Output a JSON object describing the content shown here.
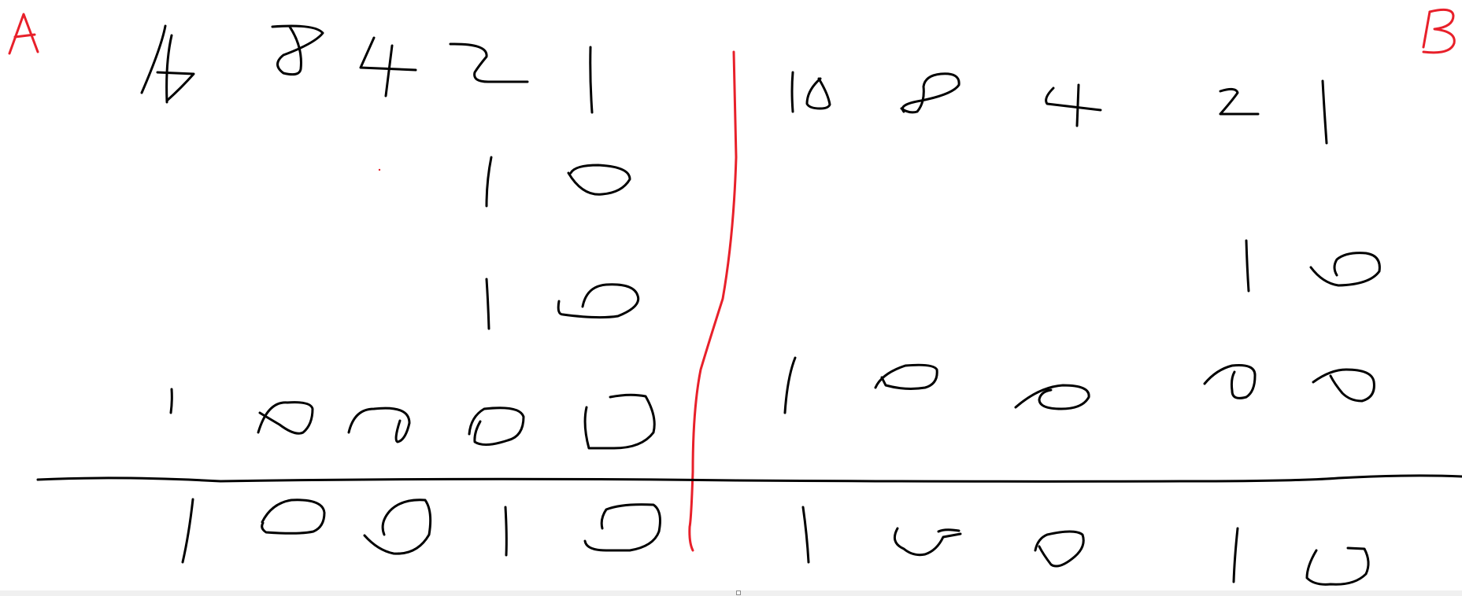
{
  "canvas": {
    "background": "#ffffff",
    "ink_colors": {
      "black": "#000000",
      "red": "#e8202a"
    }
  },
  "labels": {
    "left_label": "A",
    "right_label": "B"
  },
  "left_problem": {
    "place_values": [
      "16",
      "8",
      "4",
      "2",
      "1"
    ],
    "row_1": [
      "1",
      "0"
    ],
    "row_2": [
      "1",
      "0"
    ],
    "row_3": [
      "1",
      "0",
      "0",
      "0",
      "0"
    ],
    "result": [
      "1",
      "0",
      "0",
      "1",
      "0"
    ]
  },
  "right_problem": {
    "place_values": [
      "16",
      "8",
      "4",
      "2",
      "1"
    ],
    "row_1": [
      "1",
      "0"
    ],
    "row_2": [
      "1",
      "0",
      "0",
      "0",
      "0"
    ],
    "result": [
      "1",
      "0",
      "0",
      "1",
      "0"
    ]
  }
}
